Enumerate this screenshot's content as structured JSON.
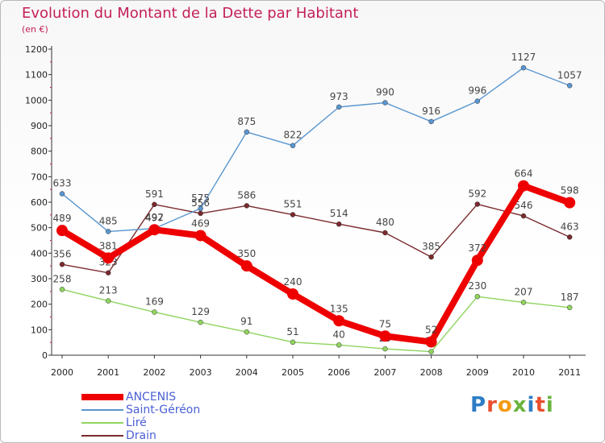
{
  "title": "Evolution du Montant de la Dette par Habitant",
  "subtitle": "(en €)",
  "logo": {
    "text": "Proxiti",
    "colors": [
      "#2e7dc6",
      "#e8502f",
      "#f29b14",
      "#6ab43e",
      "#2e7dc6",
      "#e8502f",
      "#6ab43e"
    ]
  },
  "chart_data": {
    "type": "line",
    "title": "Evolution du Montant de la Dette par Habitant",
    "subtitle": "(en €)",
    "x": [
      "2000",
      "2001",
      "2002",
      "2003",
      "2004",
      "2005",
      "2006",
      "2007",
      "2008",
      "2009",
      "2010",
      "2011"
    ],
    "ylim": [
      0,
      1200
    ],
    "yticks": [
      0,
      100,
      200,
      300,
      400,
      500,
      600,
      700,
      800,
      900,
      1000,
      1100,
      1200
    ],
    "grid": false,
    "legend_position": "bottom-left",
    "series": [
      {
        "name": "Drain",
        "color": "#7a2a2e",
        "values": [
          356,
          323,
          591,
          556,
          586,
          551,
          514,
          480,
          385,
          592,
          546,
          463
        ]
      },
      {
        "name": "Liré",
        "color": "#8fd45f",
        "values": [
          258,
          213,
          169,
          129,
          91,
          51,
          40,
          25,
          14,
          230,
          207,
          187
        ]
      },
      {
        "name": "Saint-Géréon",
        "color": "#5a96d0",
        "values": [
          633,
          485,
          497,
          575,
          875,
          822,
          973,
          990,
          916,
          996,
          1127,
          1057
        ]
      },
      {
        "name": "ANCENIS",
        "color": "#ee0000",
        "values": [
          489,
          381,
          492,
          469,
          350,
          240,
          135,
          75,
          52,
          372,
          664,
          598
        ]
      }
    ],
    "legend": [
      "ANCENIS",
      "Saint-Géréon",
      "Liré",
      "Drain"
    ]
  }
}
